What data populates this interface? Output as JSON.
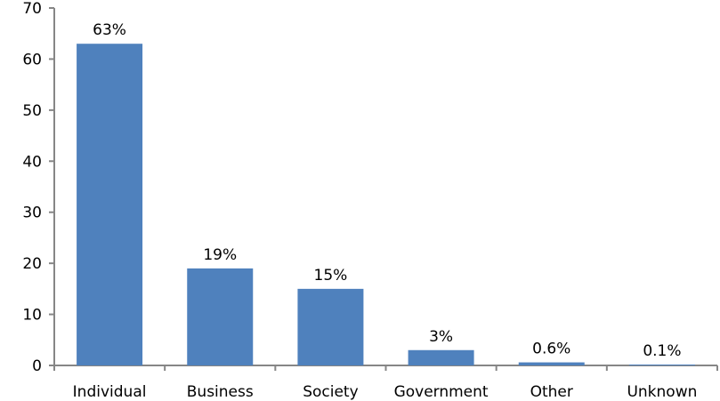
{
  "chart_data": {
    "type": "bar",
    "categories": [
      "Individual",
      "Business",
      "Society",
      "Government",
      "Other",
      "Unknown"
    ],
    "values": [
      63,
      19,
      15,
      3,
      0.6,
      0.1
    ],
    "data_labels": [
      "63%",
      "19%",
      "15%",
      "3%",
      "0.6%",
      "0.1%"
    ],
    "yticks": [
      0,
      10,
      20,
      30,
      40,
      50,
      60,
      70
    ],
    "ylim": [
      0,
      70
    ],
    "title": "",
    "xlabel": "",
    "ylabel": "",
    "grid": false,
    "legend": "none",
    "bar_color": "#4F81BD",
    "axis_color": "#868686"
  }
}
